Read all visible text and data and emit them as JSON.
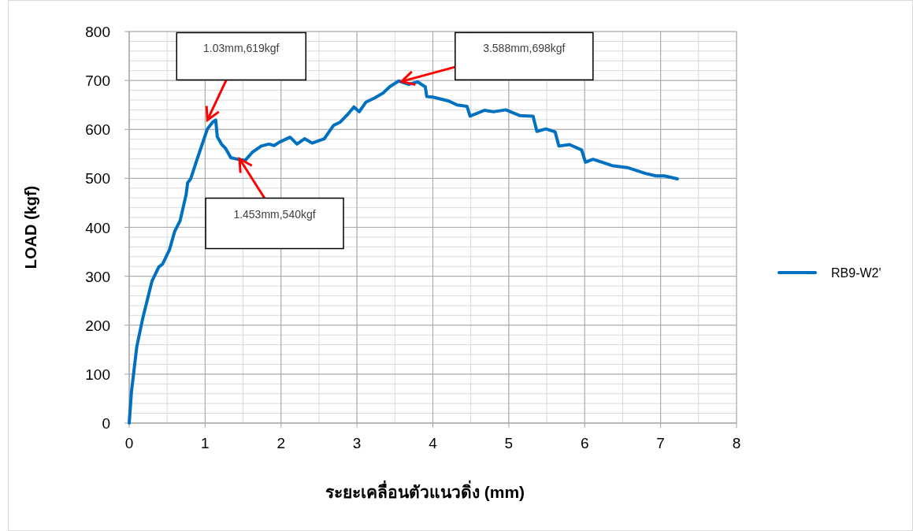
{
  "chart_data": {
    "type": "line",
    "xlabel": "ระยะเคลื่อนตัวแนวดิ่ง (mm)",
    "ylabel": "LOAD (kgf)",
    "xlim": [
      0,
      8
    ],
    "xticks": [
      0,
      1,
      2,
      3,
      4,
      5,
      6,
      7,
      8
    ],
    "ylim": [
      0,
      800
    ],
    "yticks": [
      0,
      100,
      200,
      300,
      400,
      500,
      600,
      700,
      800
    ],
    "grid": true,
    "legend": "right",
    "marker": "none",
    "line_style": "solid",
    "annotations": [
      {
        "text": "1.03mm,619kgf",
        "x": 1.03,
        "y": 619
      },
      {
        "text": "1.453mm,540kgf",
        "x": 1.453,
        "y": 540
      },
      {
        "text": "3.588mm,698kgf",
        "x": 3.588,
        "y": 698
      }
    ],
    "series": [
      {
        "name": "RB9-W2'",
        "color": "#0070c0",
        "x": [
          0,
          0.03,
          0.1,
          0.18,
          0.3,
          0.39,
          0.44,
          0.53,
          0.6,
          0.67,
          0.75,
          0.77,
          0.81,
          0.89,
          1.03,
          1.1,
          1.14,
          1.16,
          1.22,
          1.27,
          1.34,
          1.43,
          1.53,
          1.62,
          1.74,
          1.84,
          1.91,
          1.98,
          2.12,
          2.21,
          2.31,
          2.41,
          2.57,
          2.69,
          2.78,
          2.88,
          2.96,
          3.03,
          3.12,
          3.23,
          3.35,
          3.43,
          3.55,
          3.68,
          3.8,
          3.9,
          3.92,
          4.0,
          4.21,
          4.32,
          4.45,
          4.49,
          4.68,
          4.8,
          4.96,
          5.15,
          5.32,
          5.37,
          5.49,
          5.61,
          5.66,
          5.8,
          5.96,
          6.01,
          6.11,
          6.36,
          6.56,
          6.8,
          6.94,
          7.05,
          7.22
        ],
        "values": [
          0,
          64,
          156,
          215,
          290,
          319,
          325,
          354,
          392,
          413,
          467,
          491,
          499,
          537,
          601,
          615,
          619,
          585,
          569,
          561,
          542,
          539,
          537,
          553,
          566,
          570,
          567,
          574,
          584,
          570,
          581,
          572,
          581,
          608,
          615,
          631,
          646,
          636,
          656,
          664,
          675,
          687,
          699,
          692,
          697,
          687,
          667,
          666,
          658,
          650,
          647,
          627,
          639,
          636,
          640,
          628,
          627,
          596,
          601,
          595,
          566,
          569,
          558,
          533,
          539,
          526,
          522,
          510,
          505,
          505,
          499
        ]
      }
    ]
  }
}
